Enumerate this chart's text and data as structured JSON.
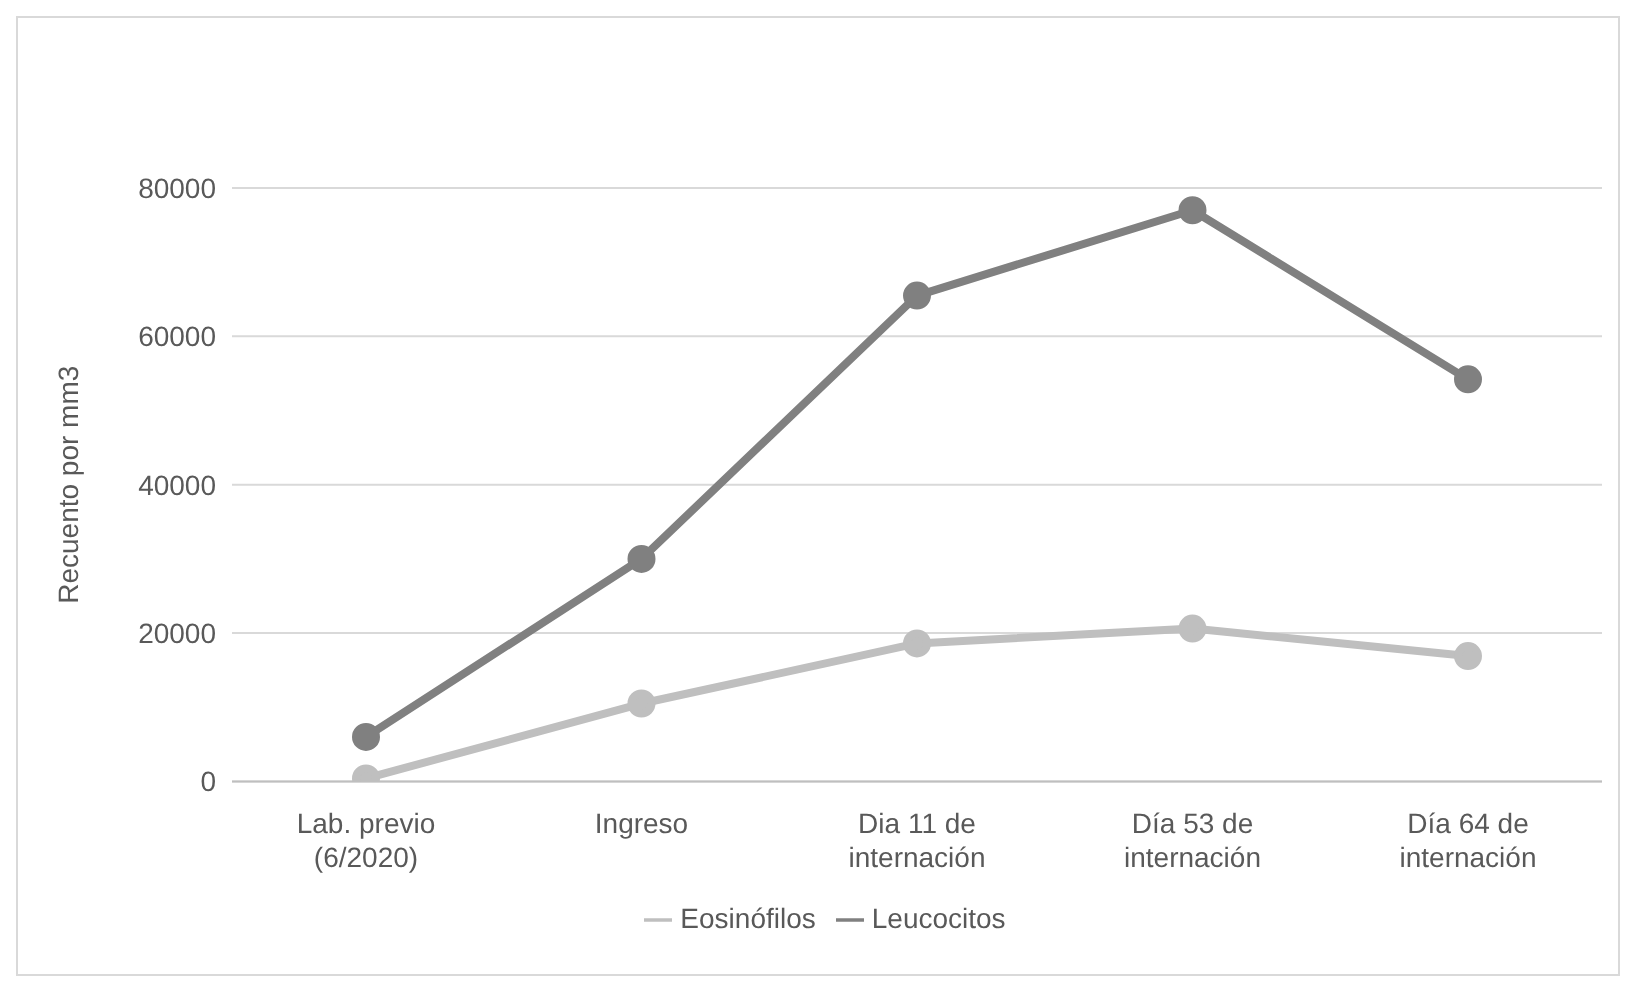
{
  "chart_data": {
    "type": "line",
    "ylabel": "Recuento por mm3",
    "categories": [
      "Lab. previo\n(6/2020)",
      "Ingreso",
      "Dia 11 de\ninternación",
      "Día 53 de\ninternación",
      "Día 64 de\ninternación"
    ],
    "series": [
      {
        "name": "Leucocitos",
        "color": "#808080",
        "values": [
          6000,
          30000,
          65500,
          77000,
          54200
        ]
      },
      {
        "name": "Eosinófilos",
        "color": "#bfbfbf",
        "values": [
          400,
          10500,
          18600,
          20600,
          16900
        ]
      }
    ],
    "ylim": [
      0,
      80000
    ],
    "yticks": [
      0,
      20000,
      40000,
      60000,
      80000
    ],
    "grid": "y",
    "legend": "bottom",
    "marker": "circle",
    "line_style": "solid"
  }
}
